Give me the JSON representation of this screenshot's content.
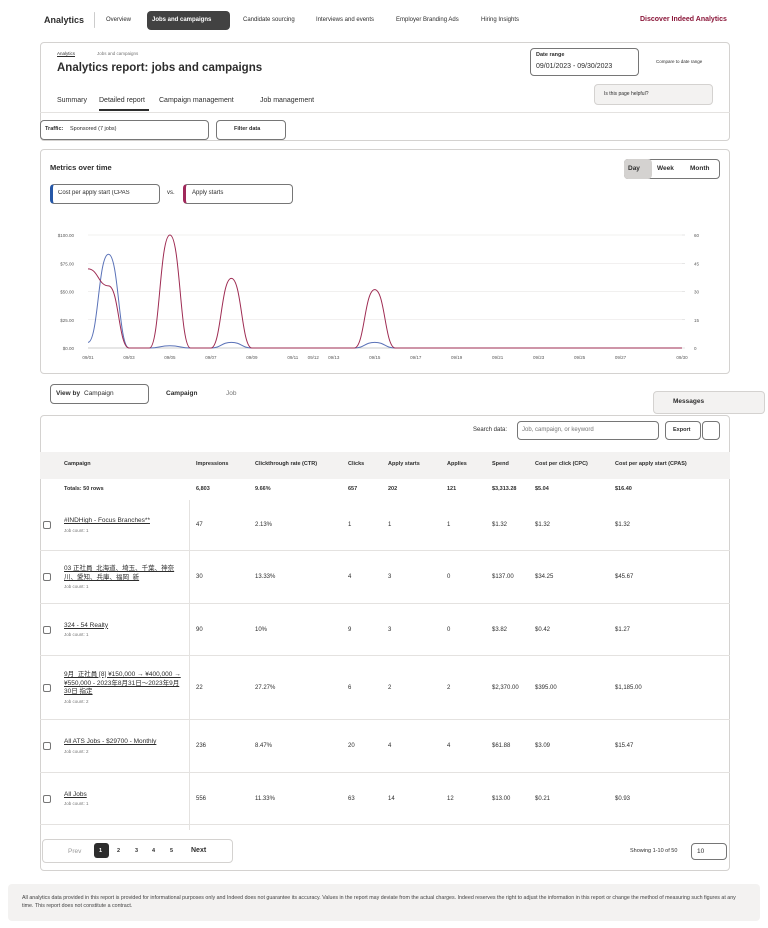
{
  "nav": {
    "brand": "Analytics",
    "items": [
      "Overview",
      "Jobs and campaigns",
      "Candidate sourcing",
      "Interviews and events",
      "Employer Branding Ads",
      "Hiring Insights"
    ],
    "cta": "Discover Indeed Analytics"
  },
  "header": {
    "breadcrumb": [
      "Analytics",
      "Jobs and campaigns"
    ],
    "title": "Analytics report: jobs and campaigns",
    "date_range_label": "Date range",
    "date_range": "09/01/2023 - 09/30/2023",
    "compare": "Compare to date range",
    "helpful": "Is this page helpful?"
  },
  "tabs": [
    "Summary",
    "Detailed report",
    "Campaign management",
    "Job management"
  ],
  "filters": {
    "traffic_label": "Traffic:",
    "traffic": "Sponsored (7 jobs)",
    "filter": "Filter data"
  },
  "chart_data": {
    "type": "line",
    "title": "Metrics over time",
    "granularity": [
      "Day",
      "Week",
      "Month"
    ],
    "vs": "vs.",
    "categories": [
      "09/01",
      null,
      "09/03",
      null,
      "09/05",
      null,
      "09/07",
      null,
      "09/09",
      null,
      "09/11",
      "09/12",
      "09/13",
      null,
      "09/15",
      null,
      "09/17",
      null,
      "09/19",
      null,
      "09/21",
      null,
      "09/23",
      null,
      "09/25",
      null,
      "09/27",
      null,
      null,
      "09/30"
    ],
    "series": [
      {
        "name": "Cost per apply start (CPAS",
        "color": "#5a72b8",
        "values": [
          5,
          83,
          0,
          0,
          2,
          0,
          0,
          5,
          0,
          0,
          0,
          0,
          0,
          0,
          5,
          0,
          0,
          0,
          0,
          0,
          0,
          0,
          0,
          0,
          0,
          0,
          0,
          0,
          0,
          0
        ]
      },
      {
        "name": "Apply starts",
        "color": "#9e2b52",
        "axis": "y2",
        "values": [
          42,
          33,
          0,
          0,
          60,
          0,
          0,
          37,
          0,
          0,
          0,
          0,
          0,
          0,
          31,
          0,
          0,
          0,
          0,
          0,
          0,
          0,
          0,
          0,
          0,
          0,
          0,
          0,
          0,
          0
        ]
      }
    ],
    "ylim": [
      0,
      100
    ],
    "yticks": [
      {
        "value": 0,
        "label": "$0.00"
      },
      {
        "value": 25,
        "label": "$25.00"
      },
      {
        "value": 50,
        "label": "$50.00"
      },
      {
        "value": 75,
        "label": "$75.00"
      },
      {
        "value": 100,
        "label": "$100.00"
      }
    ],
    "y2lim": [
      0,
      60
    ],
    "y2ticks": [
      0,
      15,
      30,
      45,
      60
    ],
    "grid": true
  },
  "view": {
    "label": "View by",
    "value": "Campaign",
    "crumbs": [
      "Campaign",
      "Job"
    ]
  },
  "messages": "Messages",
  "search": {
    "label": "Search data:",
    "placeholder": "Job, campaign, or keyword",
    "export": "Export"
  },
  "table": {
    "columns": [
      "Campaign",
      "Impressions",
      "Clickthrough rate (CTR)",
      "Clicks",
      "Apply starts",
      "Applies",
      "Spend",
      "Cost per click (CPC)",
      "Cost per apply start (CPAS)"
    ],
    "totals": [
      "Totals: 50 rows",
      "6,803",
      "9.66%",
      "657",
      "202",
      "121",
      "$3,313.28",
      "$5.04",
      "$16.40"
    ],
    "rows": [
      {
        "name": "#INDHigh - Focus Branches**",
        "job_count": "Job count: 1",
        "cells": [
          "47",
          "2.13%",
          "1",
          "1",
          "1",
          "$1.32",
          "$1.32",
          "$1.32"
        ]
      },
      {
        "name": "03 正社員_北海道、埼玉、千葉、神奈川、愛知、兵庫、福岡_新",
        "job_count": "Job count: 1",
        "cells": [
          "30",
          "13.33%",
          "4",
          "3",
          "0",
          "$137.00",
          "$34.25",
          "$45.67"
        ]
      },
      {
        "name": "324 - 54 Realty",
        "job_count": "Job count: 1",
        "cells": [
          "90",
          "10%",
          "9",
          "3",
          "0",
          "$3.82",
          "$0.42",
          "$1.27"
        ]
      },
      {
        "name": "9月_正社員 [8] ¥150,000 → ¥400,000 → ¥550,000 - 2023年8月31日～2023年9月30日 指定",
        "job_count": "Job count: 2",
        "cells": [
          "22",
          "27.27%",
          "6",
          "2",
          "2",
          "$2,370.00",
          "$395.00",
          "$1,185.00"
        ]
      },
      {
        "name": "All ATS Jobs - $29700 - Monthly",
        "job_count": "Job count: 2",
        "cells": [
          "236",
          "8.47%",
          "20",
          "4",
          "4",
          "$61.88",
          "$3.09",
          "$15.47"
        ]
      },
      {
        "name": "All Jobs",
        "job_count": "Job count: 1",
        "cells": [
          "556",
          "11.33%",
          "63",
          "14",
          "12",
          "$13.00",
          "$0.21",
          "$0.93"
        ]
      }
    ]
  },
  "pagination": {
    "prev": "Prev",
    "pages": [
      "1",
      "2",
      "3",
      "4",
      "5"
    ],
    "next": "Next",
    "showing": "Showing 1-10 of 50",
    "per_page": "10"
  },
  "footer": "All analytics data provided in this report is provided for informational purposes only and Indeed does not guarantee its accuracy. Values in the report may deviate from the actual charges. Indeed reserves the right to adjust the information in this report or change the method of measuring such figures at any time. This report does not constitute a contract."
}
